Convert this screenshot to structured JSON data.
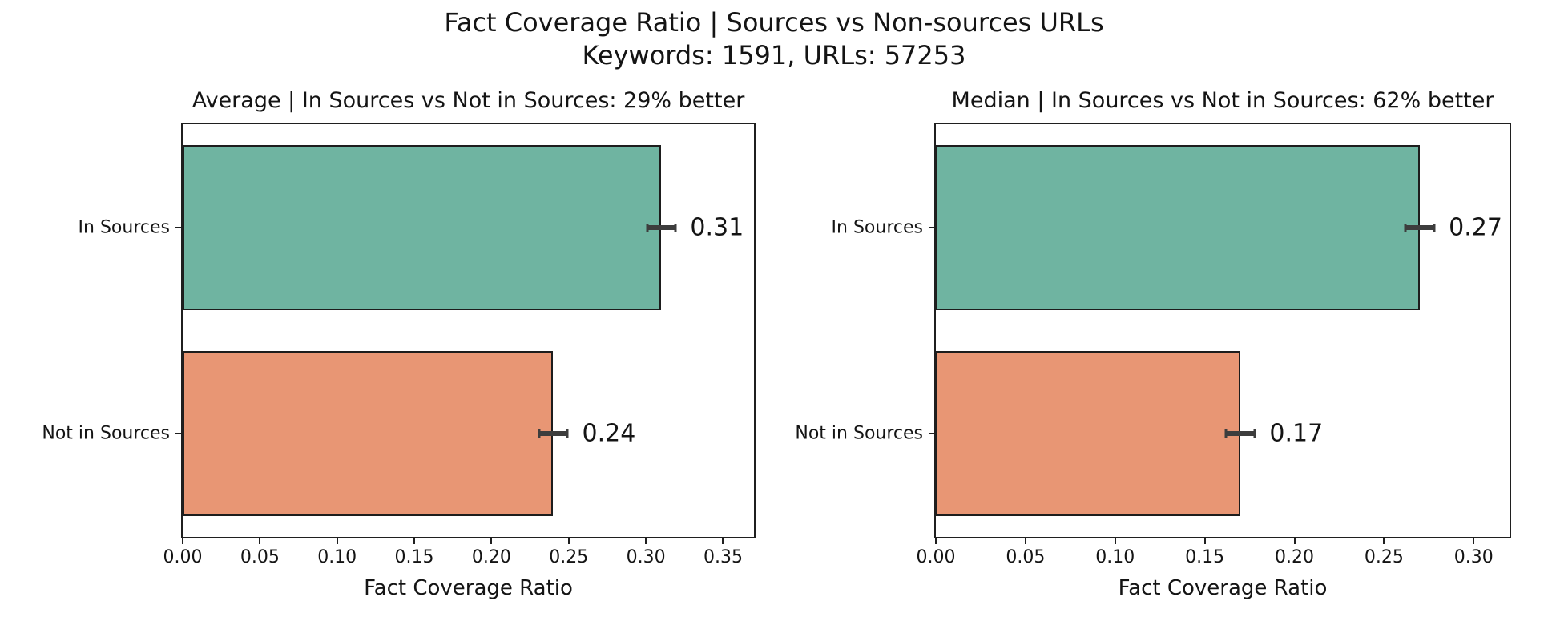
{
  "header": {
    "title": "Fact Coverage Ratio | Sources vs Non-sources URLs",
    "subtitle": "Keywords: 1591, URLs: 57253"
  },
  "colors": {
    "in_sources": "#6FB4A1",
    "not_in_sources": "#E89674",
    "bar_edge": "#1d1d1d",
    "spine": "#1f1f1f",
    "error_bar": "#3d3d3d",
    "text": "#141414",
    "background": "#ffffff"
  },
  "chart_data": [
    {
      "type": "bar",
      "orientation": "horizontal",
      "title": "Average | In Sources vs Not in Sources: 29% better",
      "categories": [
        "In Sources",
        "Not in Sources"
      ],
      "values": [
        0.31,
        0.24
      ],
      "value_labels": [
        "0.31",
        "0.24"
      ],
      "error_half_width": [
        0.009,
        0.009
      ],
      "bar_color_keys": [
        "in_sources",
        "not_in_sources"
      ],
      "xlabel": "Fact Coverage Ratio",
      "xlim": [
        0,
        0.37
      ],
      "xticks": [
        0.0,
        0.05,
        0.1,
        0.15,
        0.2,
        0.25,
        0.3,
        0.35
      ],
      "xtick_labels": [
        "0.00",
        "0.05",
        "0.10",
        "0.15",
        "0.20",
        "0.25",
        "0.30",
        "0.35"
      ],
      "grid": false,
      "legend": "none"
    },
    {
      "type": "bar",
      "orientation": "horizontal",
      "title": "Median | In Sources vs Not in Sources: 62% better",
      "categories": [
        "In Sources",
        "Not in Sources"
      ],
      "values": [
        0.27,
        0.17
      ],
      "value_labels": [
        "0.27",
        "0.17"
      ],
      "error_half_width": [
        0.008,
        0.008
      ],
      "bar_color_keys": [
        "in_sources",
        "not_in_sources"
      ],
      "xlabel": "Fact Coverage Ratio",
      "xlim": [
        0,
        0.32
      ],
      "xticks": [
        0.0,
        0.05,
        0.1,
        0.15,
        0.2,
        0.25,
        0.3
      ],
      "xtick_labels": [
        "0.00",
        "0.05",
        "0.10",
        "0.15",
        "0.20",
        "0.25",
        "0.30"
      ],
      "grid": false,
      "legend": "none"
    }
  ]
}
